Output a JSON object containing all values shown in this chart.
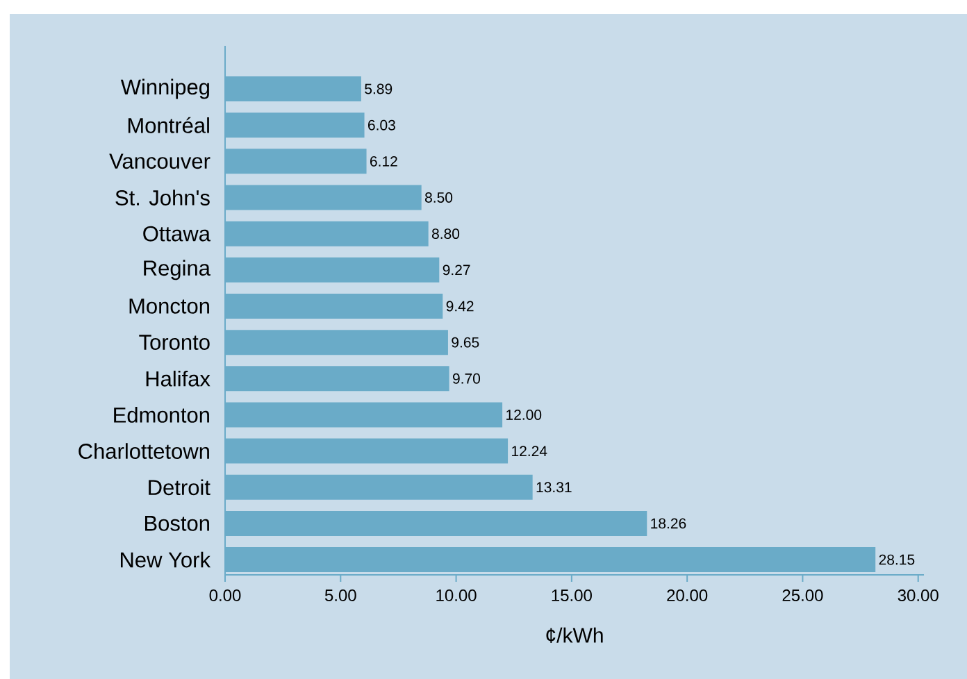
{
  "chart_data": {
    "type": "bar",
    "orientation": "horizontal",
    "xlabel": "¢/kWh",
    "categories": [
      "Winnipeg",
      "Montréal",
      "Vancouver",
      "St. John's",
      "Ottawa",
      "Regina",
      "Moncton",
      "Toronto",
      "Halifax",
      "Edmonton",
      "Charlottetown",
      "Detroit",
      "Boston",
      "New York"
    ],
    "values": [
      5.89,
      6.03,
      6.12,
      8.5,
      8.8,
      9.27,
      9.42,
      9.65,
      9.7,
      12.0,
      12.24,
      13.31,
      18.26,
      28.15
    ],
    "value_labels": [
      "5.89",
      "6.03",
      "6.12",
      "8.50",
      "8.80",
      "9.27",
      "9.42",
      "9.65",
      "9.70",
      "12.00",
      "12.24",
      "13.31",
      "18.26",
      "28.15"
    ],
    "color": "#6aabc8",
    "xlim": [
      0,
      30.25
    ],
    "xticks": [
      {
        "value": 0,
        "label": "0.00"
      },
      {
        "value": 5,
        "label": "5.00"
      },
      {
        "value": 10,
        "label": "10.00"
      },
      {
        "value": 15,
        "label": "15.00"
      },
      {
        "value": 20,
        "label": "20.00"
      },
      {
        "value": 25,
        "label": "25.00"
      },
      {
        "value": 30,
        "label": "30.00"
      }
    ],
    "grid": false
  }
}
